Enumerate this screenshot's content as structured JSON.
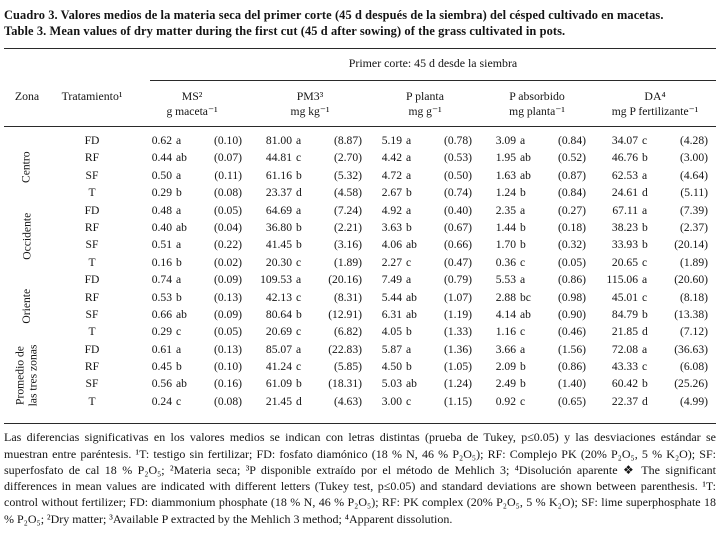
{
  "title": {
    "es": "Cuadro 3. Valores medios de la materia seca del primer corte (45 d después de la siembra) del césped cultivado en macetas.",
    "en": "Table 3. Mean values of dry matter during the first cut (45 d after sowing) of the grass cultivated in pots."
  },
  "table": {
    "span_header": "Primer corte: 45 d desde la siembra",
    "columns": {
      "zona": "Zona",
      "tratamiento": "Tratamiento¹",
      "data": [
        {
          "name": "MS²",
          "unit": "g maceta⁻¹"
        },
        {
          "name": "PM3³",
          "unit": "mg kg⁻¹"
        },
        {
          "name": "P planta",
          "unit": "mg g⁻¹"
        },
        {
          "name": "P absorbido",
          "unit": "mg planta⁻¹"
        },
        {
          "name": "DA⁴",
          "unit": "mg P fertilizante⁻¹"
        }
      ]
    },
    "groups": [
      {
        "zone": [
          "Centro"
        ],
        "rows": [
          {
            "treatment": "FD",
            "cells": [
              [
                "0.62",
                "a",
                "(0.10)"
              ],
              [
                "81.00",
                "a",
                "(8.87)"
              ],
              [
                "5.19",
                "a",
                "(0.78)"
              ],
              [
                "3.09",
                "a",
                "(0.84)"
              ],
              [
                "34.07",
                "c",
                "(4.28)"
              ]
            ]
          },
          {
            "treatment": "RF",
            "cells": [
              [
                "0.44",
                "ab",
                "(0.07)"
              ],
              [
                "44.81",
                "c",
                "(2.70)"
              ],
              [
                "4.42",
                "a",
                "(0.53)"
              ],
              [
                "1.95",
                "ab",
                "(0.52)"
              ],
              [
                "46.76",
                "b",
                "(3.00)"
              ]
            ]
          },
          {
            "treatment": "SF",
            "cells": [
              [
                "0.50",
                "a",
                "(0.11)"
              ],
              [
                "61.16",
                "b",
                "(5.32)"
              ],
              [
                "4.72",
                "a",
                "(0.50)"
              ],
              [
                "1.63",
                "ab",
                "(0.87)"
              ],
              [
                "62.53",
                "a",
                "(4.64)"
              ]
            ]
          },
          {
            "treatment": "T",
            "cells": [
              [
                "0.29",
                "b",
                "(0.08)"
              ],
              [
                "23.37",
                "d",
                "(4.58)"
              ],
              [
                "2.67",
                "b",
                "(0.74)"
              ],
              [
                "1.24",
                "b",
                "(0.84)"
              ],
              [
                "24.61",
                "d",
                "(5.11)"
              ]
            ]
          }
        ]
      },
      {
        "zone": [
          "Occidente"
        ],
        "rows": [
          {
            "treatment": "FD",
            "cells": [
              [
                "0.48",
                "a",
                "(0.05)"
              ],
              [
                "64.69",
                "a",
                "(7.24)"
              ],
              [
                "4.92",
                "a",
                "(0.40)"
              ],
              [
                "2.35",
                "a",
                "(0.27)"
              ],
              [
                "67.11",
                "a",
                "(7.39)"
              ]
            ]
          },
          {
            "treatment": "RF",
            "cells": [
              [
                "0.40",
                "ab",
                "(0.04)"
              ],
              [
                "36.80",
                "b",
                "(2.21)"
              ],
              [
                "3.63",
                "b",
                "(0.67)"
              ],
              [
                "1.44",
                "b",
                "(0.18)"
              ],
              [
                "38.23",
                "b",
                "(2.37)"
              ]
            ]
          },
          {
            "treatment": "SF",
            "cells": [
              [
                "0.51",
                "a",
                "(0.22)"
              ],
              [
                "41.45",
                "b",
                "(3.16)"
              ],
              [
                "4.06",
                "ab",
                "(0.66)"
              ],
              [
                "1.70",
                "b",
                "(0.32)"
              ],
              [
                "33.93",
                "b",
                "(20.14)"
              ]
            ]
          },
          {
            "treatment": "T",
            "cells": [
              [
                "0.16",
                "b",
                "(0.02)"
              ],
              [
                "20.30",
                "c",
                "(1.89)"
              ],
              [
                "2.27",
                "c",
                "(0.47)"
              ],
              [
                "0.36",
                "c",
                "(0.05)"
              ],
              [
                "20.65",
                "c",
                "(1.89)"
              ]
            ]
          }
        ]
      },
      {
        "zone": [
          "Oriente"
        ],
        "rows": [
          {
            "treatment": "FD",
            "cells": [
              [
                "0.74",
                "a",
                "(0.09)"
              ],
              [
                "109.53",
                "a",
                "(20.16)"
              ],
              [
                "7.49",
                "a",
                "(0.79)"
              ],
              [
                "5.53",
                "a",
                "(0.86)"
              ],
              [
                "115.06",
                "a",
                "(20.60)"
              ]
            ]
          },
          {
            "treatment": "RF",
            "cells": [
              [
                "0.53",
                "b",
                "(0.13)"
              ],
              [
                "42.13",
                "c",
                "(8.31)"
              ],
              [
                "5.44",
                "ab",
                "(1.07)"
              ],
              [
                "2.88",
                "bc",
                "(0.98)"
              ],
              [
                "45.01",
                "c",
                "(8.18)"
              ]
            ]
          },
          {
            "treatment": "SF",
            "cells": [
              [
                "0.66",
                "ab",
                "(0.09)"
              ],
              [
                "80.64",
                "b",
                "(12.91)"
              ],
              [
                "6.31",
                "ab",
                "(1.19)"
              ],
              [
                "4.14",
                "ab",
                "(0.90)"
              ],
              [
                "84.79",
                "b",
                "(13.38)"
              ]
            ]
          },
          {
            "treatment": "T",
            "cells": [
              [
                "0.29",
                "c",
                "(0.05)"
              ],
              [
                "20.69",
                "c",
                "(6.82)"
              ],
              [
                "4.05",
                "b",
                "(1.33)"
              ],
              [
                "1.16",
                "c",
                "(0.46)"
              ],
              [
                "21.85",
                "d",
                "(7.12)"
              ]
            ]
          }
        ]
      },
      {
        "zone": [
          "Promedio de",
          "las tres zonas"
        ],
        "rows": [
          {
            "treatment": "FD",
            "cells": [
              [
                "0.61",
                "a",
                "(0.13)"
              ],
              [
                "85.07",
                "a",
                "(22.83)"
              ],
              [
                "5.87",
                "a",
                "(1.36)"
              ],
              [
                "3.66",
                "a",
                "(1.56)"
              ],
              [
                "72.08",
                "a",
                "(36.63)"
              ]
            ]
          },
          {
            "treatment": "RF",
            "cells": [
              [
                "0.45",
                "b",
                "(0.10)"
              ],
              [
                "41.24",
                "c",
                "(5.85)"
              ],
              [
                "4.50",
                "b",
                "(1.05)"
              ],
              [
                "2.09",
                "b",
                "(0.86)"
              ],
              [
                "43.33",
                "c",
                "(6.08)"
              ]
            ]
          },
          {
            "treatment": "SF",
            "cells": [
              [
                "0.56",
                "ab",
                "(0.16)"
              ],
              [
                "61.09",
                "b",
                "(18.31)"
              ],
              [
                "5.03",
                "ab",
                "(1.24)"
              ],
              [
                "2.49",
                "b",
                "(1.40)"
              ],
              [
                "60.42",
                "b",
                "(25.26)"
              ]
            ]
          },
          {
            "treatment": "T",
            "cells": [
              [
                "0.24",
                "c",
                "(0.08)"
              ],
              [
                "21.45",
                "d",
                "(4.63)"
              ],
              [
                "3.00",
                "c",
                "(1.15)"
              ],
              [
                "0.92",
                "c",
                "(0.65)"
              ],
              [
                "22.37",
                "d",
                "(4.99)"
              ]
            ]
          }
        ]
      }
    ]
  },
  "footnote": "Las diferencias significativas en los valores medios se indican con letras distintas (prueba de Tukey, p≤0.05) y las desviaciones estándar se muestran entre paréntesis. ¹T: testigo sin fertilizar; FD: fosfato diamónico (18 % N, 46 % P₂O₅); RF: Complejo PK (20% P₂O₅, 5 % K₂O); SF: superfosfato de cal 18 % P₂O₅; ²Materia seca; ³P disponible extraído por el método de Mehlich 3; ⁴Disolución aparente ❖ The significant differences in mean values are indicated with different letters (Tukey test, p≤0.05) and standard deviations are shown between parenthesis. ¹T: control without fertilizer; FD: diammonium phosphate (18 % N, 46 % P₂O₅); RF: PK complex (20% P₂O₅, 5 % K₂O); SF: lime superphosphate 18 % P₂O₅; ²Dry matter; ³Available P extracted by the Mehlich 3 method; ⁴Apparent dissolution."
}
